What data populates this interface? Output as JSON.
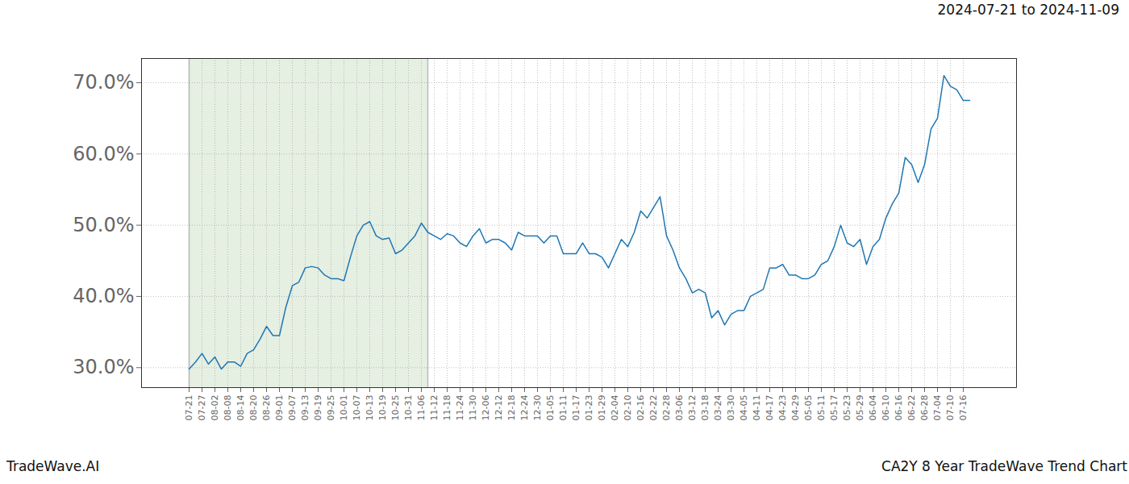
{
  "chart_data": {
    "type": "line",
    "title": "2024-07-21 to 2024-11-09",
    "categories": [
      "07-21",
      null,
      "07-27",
      null,
      "08-02",
      null,
      "08-08",
      null,
      "08-14",
      null,
      "08-20",
      null,
      "08-26",
      null,
      "09-01",
      null,
      "09-07",
      null,
      "09-13",
      null,
      "09-19",
      null,
      "09-25",
      null,
      "10-01",
      null,
      "10-07",
      null,
      "10-13",
      null,
      "10-19",
      null,
      "10-25",
      null,
      "10-31",
      null,
      "11-06",
      null,
      "11-12",
      null,
      "11-18",
      null,
      "11-24",
      null,
      "11-30",
      null,
      "12-06",
      null,
      "12-12",
      null,
      "12-18",
      null,
      "12-24",
      null,
      "12-30",
      null,
      "01-05",
      null,
      "01-11",
      null,
      "01-17",
      null,
      "01-23",
      null,
      "01-29",
      null,
      "02-04",
      null,
      "02-10",
      null,
      "02-16",
      null,
      "02-22",
      null,
      "02-28",
      null,
      "03-06",
      null,
      "03-12",
      null,
      "03-18",
      null,
      "03-24",
      null,
      "03-30",
      null,
      "04-05",
      null,
      "04-11",
      null,
      "04-17",
      null,
      "04-23",
      null,
      "04-29",
      null,
      "05-05",
      null,
      "05-11",
      null,
      "05-17",
      null,
      "05-23",
      null,
      "05-29",
      null,
      "06-04",
      null,
      "06-10",
      null,
      "06-16",
      null,
      "06-22",
      null,
      "06-28",
      null,
      "07-04",
      null,
      "07-10",
      null,
      "07-16",
      null
    ],
    "values": [
      29.8,
      30.8,
      32.0,
      30.5,
      31.5,
      29.8,
      30.8,
      30.8,
      30.2,
      32.0,
      32.5,
      34.0,
      35.8,
      34.5,
      34.5,
      38.5,
      41.5,
      42.0,
      44.0,
      44.2,
      44.0,
      43.0,
      42.5,
      42.5,
      42.2,
      45.5,
      48.5,
      50.0,
      50.5,
      48.5,
      48.0,
      48.2,
      46.0,
      46.5,
      47.5,
      48.5,
      50.3,
      49.0,
      48.5,
      48.0,
      48.8,
      48.5,
      47.5,
      47.0,
      48.5,
      49.5,
      47.5,
      48.0,
      48.0,
      47.5,
      46.5,
      49.0,
      48.5,
      48.5,
      48.5,
      47.5,
      48.5,
      48.5,
      46.0,
      46.0,
      46.0,
      47.5,
      46.0,
      46.0,
      45.5,
      44.0,
      46.0,
      48.0,
      47.0,
      49.0,
      52.0,
      51.0,
      52.5,
      54.0,
      48.5,
      46.5,
      44.0,
      42.5,
      40.5,
      41.0,
      40.5,
      37.0,
      38.0,
      36.0,
      37.5,
      38.0,
      38.0,
      40.0,
      40.5,
      41.0,
      44.0,
      44.0,
      44.5,
      43.0,
      43.0,
      42.5,
      42.5,
      43.0,
      44.5,
      45.0,
      47.0,
      50.0,
      47.5,
      47.0,
      48.0,
      44.5,
      47.0,
      48.0,
      51.0,
      53.0,
      54.5,
      59.5,
      58.5,
      56.0,
      58.5,
      63.5,
      65.0,
      71.0,
      69.5,
      69.0,
      67.5,
      67.5
    ],
    "color": "#1f77b4",
    "ylim": [
      27.2,
      73.4
    ],
    "yticks": [
      {
        "value": 30,
        "label": "30.0%"
      },
      {
        "value": 40,
        "label": "40.0%"
      },
      {
        "value": 50,
        "label": "50.0%"
      },
      {
        "value": 60,
        "label": "60.0%"
      },
      {
        "value": 70,
        "label": "70.0%"
      }
    ],
    "grid": true,
    "highlight": {
      "from": 0,
      "to": 37,
      "color": "#e5efe2"
    }
  },
  "footer": {
    "left": "TradeWave.AI",
    "right": "CA2Y 8 Year TradeWave Trend Chart"
  }
}
